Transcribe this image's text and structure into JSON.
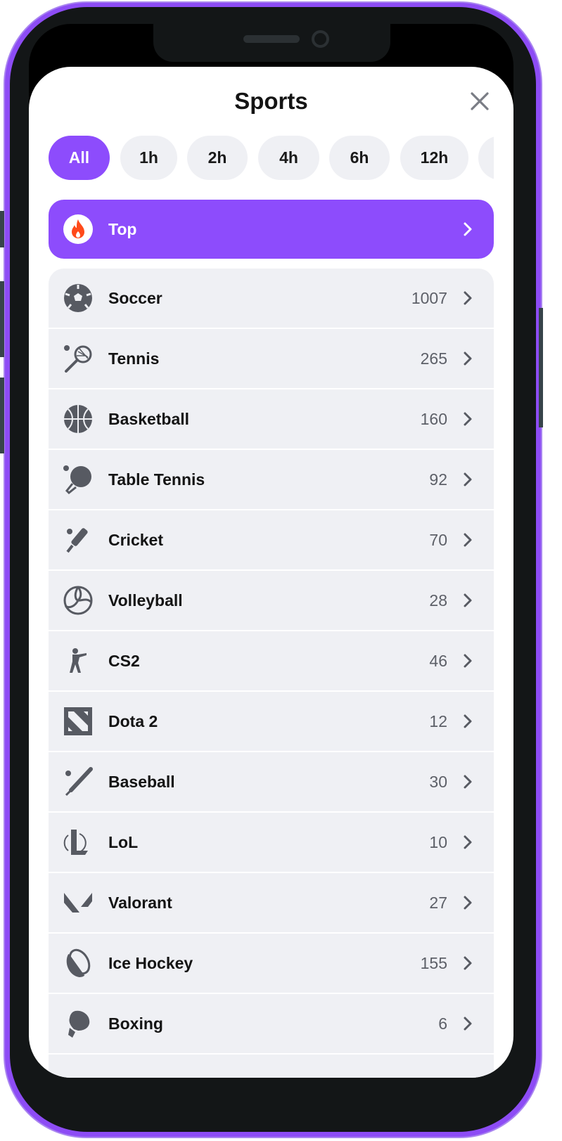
{
  "header": {
    "title": "Sports"
  },
  "filters": [
    {
      "label": "All",
      "active": true
    },
    {
      "label": "1h"
    },
    {
      "label": "2h"
    },
    {
      "label": "4h"
    },
    {
      "label": "6h"
    },
    {
      "label": "12h"
    }
  ],
  "top": {
    "label": "Top",
    "icon": "fire-icon"
  },
  "sports": [
    {
      "name": "Soccer",
      "count": "1007",
      "icon": "soccer-ball-icon"
    },
    {
      "name": "Tennis",
      "count": "265",
      "icon": "tennis-racket-icon"
    },
    {
      "name": "Basketball",
      "count": "160",
      "icon": "basketball-icon"
    },
    {
      "name": "Table Tennis",
      "count": "92",
      "icon": "table-tennis-icon"
    },
    {
      "name": "Cricket",
      "count": "70",
      "icon": "cricket-bat-icon"
    },
    {
      "name": "Volleyball",
      "count": "28",
      "icon": "volleyball-icon"
    },
    {
      "name": "CS2",
      "count": "46",
      "icon": "soldier-icon"
    },
    {
      "name": "Dota 2",
      "count": "12",
      "icon": "dota-icon"
    },
    {
      "name": "Baseball",
      "count": "30",
      "icon": "baseball-bat-icon"
    },
    {
      "name": "LoL",
      "count": "10",
      "icon": "lol-icon"
    },
    {
      "name": "Valorant",
      "count": "27",
      "icon": "valorant-icon"
    },
    {
      "name": "Ice Hockey",
      "count": "155",
      "icon": "hockey-puck-icon"
    },
    {
      "name": "Boxing",
      "count": "6",
      "icon": "boxing-glove-icon"
    }
  ],
  "colors": {
    "accent": "#8d4cfc",
    "row_bg": "#eff0f4",
    "fire": "#ff4a1a"
  }
}
